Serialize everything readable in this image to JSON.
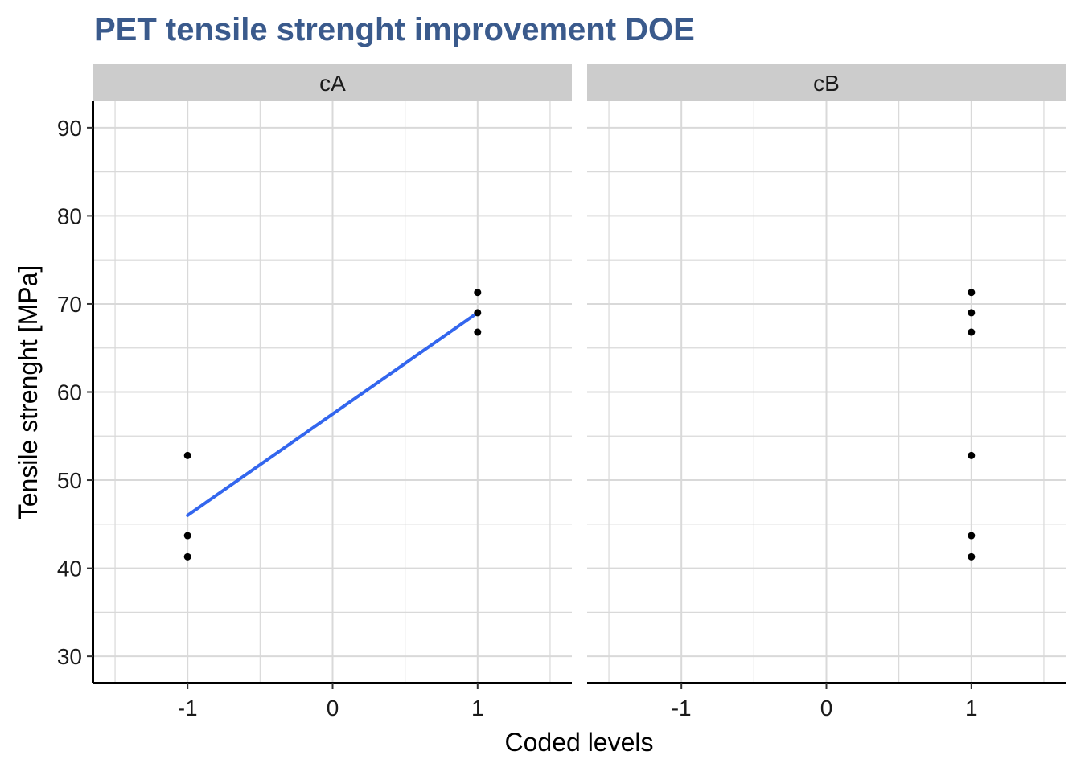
{
  "chart_data": {
    "type": "scatter",
    "title": "PET tensile strenght improvement DOE",
    "xlabel": "Coded levels",
    "ylabel": "Tensile strenght [MPa]",
    "xlim": [
      -1.65,
      1.65
    ],
    "ylim": [
      27,
      93
    ],
    "x_ticks": [
      -1,
      0,
      1
    ],
    "x_tick_labels": [
      "-1",
      "0",
      "1"
    ],
    "y_ticks": [
      30,
      40,
      50,
      60,
      70,
      80,
      90
    ],
    "y_tick_labels": [
      "30",
      "40",
      "50",
      "60",
      "70",
      "80",
      "90"
    ],
    "grid": true,
    "panels": [
      {
        "label": "cA",
        "points": [
          {
            "x": -1,
            "y": 52.8
          },
          {
            "x": -1,
            "y": 43.7
          },
          {
            "x": -1,
            "y": 41.3
          },
          {
            "x": 1,
            "y": 71.3
          },
          {
            "x": 1,
            "y": 69.0
          },
          {
            "x": 1,
            "y": 66.8
          }
        ],
        "fit_line": [
          {
            "x": -1,
            "y": 46.0
          },
          {
            "x": 1,
            "y": 69.0
          }
        ]
      },
      {
        "label": "cB",
        "points": [
          {
            "x": 1,
            "y": 71.3
          },
          {
            "x": 1,
            "y": 69.0
          },
          {
            "x": 1,
            "y": 66.8
          },
          {
            "x": 1,
            "y": 52.8
          },
          {
            "x": 1,
            "y": 43.7
          },
          {
            "x": 1,
            "y": 41.3
          }
        ],
        "fit_line": []
      }
    ],
    "colors": {
      "title": "#3a5a8c",
      "points": "#000000",
      "fit_line": "#3366ee",
      "grid": "#d9d9d9",
      "strip": "#cccccc"
    }
  }
}
